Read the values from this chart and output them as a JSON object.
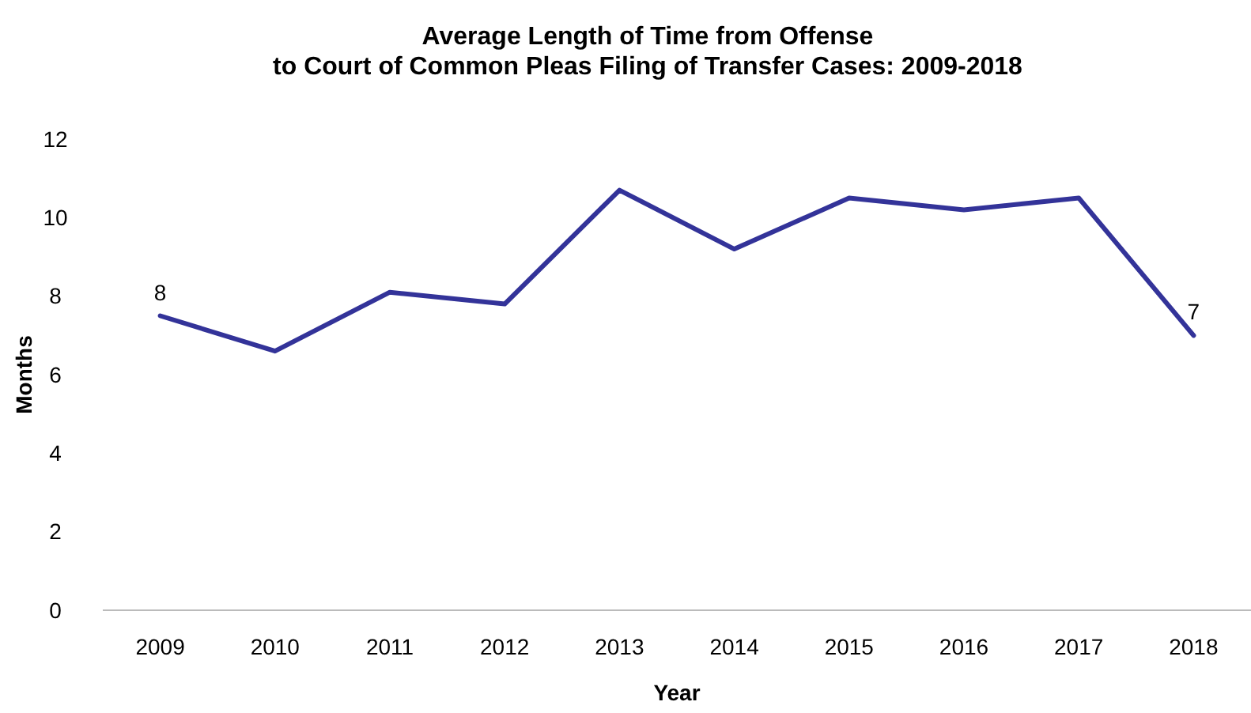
{
  "chart_data": {
    "type": "line",
    "title": "Average Length of Time from Offense\nto Court of Common Pleas Filing of Transfer Cases: 2009-2018",
    "xlabel": "Year",
    "ylabel": "Months",
    "categories": [
      "2009",
      "2010",
      "2011",
      "2012",
      "2013",
      "2014",
      "2015",
      "2016",
      "2017",
      "2018"
    ],
    "series": [
      {
        "color": "#333399",
        "values": [
          7.5,
          6.6,
          8.1,
          7.8,
          10.7,
          9.2,
          10.5,
          10.2,
          10.5,
          7.0
        ],
        "value_labels": [
          "8",
          null,
          null,
          null,
          null,
          null,
          null,
          null,
          null,
          "7"
        ]
      }
    ],
    "ylim": [
      0,
      12
    ],
    "yticks": [
      0,
      2,
      4,
      6,
      8,
      10,
      12
    ],
    "grid": false,
    "marker": "none",
    "line_style": "solid"
  }
}
